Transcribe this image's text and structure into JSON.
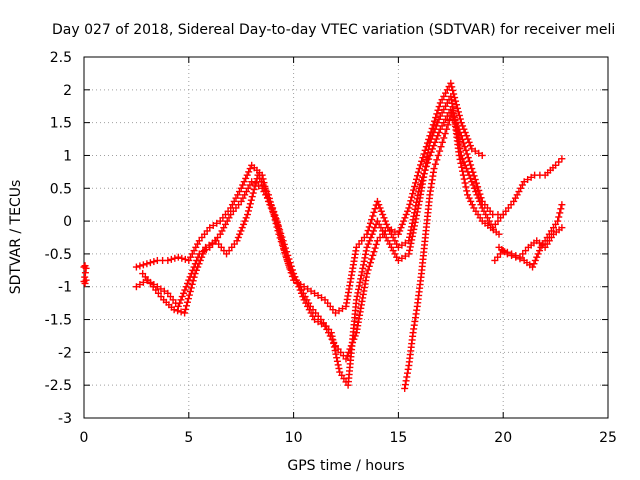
{
  "chart_data": {
    "type": "scatter",
    "title": "Day 027 of 2018, Sidereal Day-to-day VTEC variation (SDTVAR) for receiver meli",
    "xlabel": "GPS time / hours",
    "ylabel": "SDTVAR / TECUs",
    "xlim": [
      0,
      25
    ],
    "ylim": [
      -3,
      2.5
    ],
    "xticks": [
      "0",
      "5",
      "10",
      "15",
      "20",
      "25"
    ],
    "yticks": [
      "-3",
      "-2.5",
      "-2",
      "-1.5",
      "-1",
      "-0.5",
      "0",
      "0.5",
      "1",
      "1.5",
      "2",
      "2.5"
    ],
    "grid": true,
    "marker": "plus",
    "color": "#ff0000",
    "series": [
      {
        "x": [
          0.0,
          0.05,
          0.1,
          0.0,
          0.05,
          0.1
        ],
        "y": [
          -0.7,
          -0.68,
          -0.72,
          -0.92,
          -0.95,
          -0.9
        ]
      },
      {
        "x": [
          2.5,
          3.0,
          3.5,
          4.0,
          4.5,
          5.0,
          5.5,
          6.0,
          6.5,
          7.0,
          7.5,
          8.0,
          8.5,
          8.8,
          9.2,
          9.6,
          10.0,
          10.5,
          11.0,
          11.5,
          12.0,
          12.5,
          13.0,
          13.5,
          14.0,
          14.5,
          15.0,
          15.5,
          16.0,
          16.5,
          17.0,
          17.5,
          18.0,
          18.5,
          19.0
        ],
        "y": [
          -0.7,
          -0.65,
          -0.6,
          -0.6,
          -0.55,
          -0.6,
          -0.3,
          -0.1,
          0.0,
          0.2,
          0.5,
          0.85,
          0.7,
          0.3,
          0.0,
          -0.5,
          -0.9,
          -1.0,
          -1.1,
          -1.2,
          -1.4,
          -1.3,
          -0.4,
          -0.2,
          0.3,
          -0.1,
          -0.2,
          0.2,
          0.8,
          1.3,
          1.8,
          2.1,
          1.5,
          1.1,
          1.0
        ]
      },
      {
        "x": [
          2.5,
          3.0,
          3.5,
          4.0,
          4.5,
          5.0,
          5.5,
          6.0,
          6.5,
          7.0,
          7.5,
          8.0,
          8.5,
          9.0,
          9.5,
          10.0,
          10.5,
          11.0,
          11.5,
          12.0,
          12.5,
          13.0,
          13.5,
          14.0,
          14.5,
          15.0,
          15.5,
          16.0,
          16.5,
          17.0,
          17.5,
          18.0,
          18.5,
          19.0,
          19.5,
          20.0
        ],
        "y": [
          -1.0,
          -0.9,
          -1.0,
          -1.1,
          -1.3,
          -0.9,
          -0.5,
          -0.4,
          -0.2,
          0.1,
          0.3,
          0.6,
          0.5,
          0.2,
          -0.3,
          -0.8,
          -1.2,
          -1.5,
          -1.6,
          -1.9,
          -2.1,
          -1.7,
          -0.8,
          -0.3,
          -0.1,
          -0.4,
          -0.3,
          0.5,
          1.0,
          1.4,
          1.7,
          1.3,
          0.8,
          0.3,
          0.1,
          0.1
        ]
      },
      {
        "x": [
          2.8,
          3.3,
          3.8,
          4.3,
          4.8,
          5.3,
          5.8,
          6.3,
          6.8,
          7.3,
          7.8,
          8.3,
          8.8,
          9.3,
          9.8,
          10.3,
          10.8,
          11.3,
          11.8,
          12.2,
          12.6,
          13.0,
          13.5,
          14.0,
          14.5,
          15.0,
          15.5,
          16.0,
          16.5,
          17.0,
          17.5,
          18.0,
          18.5,
          19.0,
          19.5,
          20.0,
          20.5,
          21.0,
          21.5,
          22.0,
          22.5,
          22.8
        ],
        "y": [
          -0.8,
          -1.0,
          -1.2,
          -1.35,
          -1.4,
          -0.8,
          -0.4,
          -0.3,
          -0.5,
          -0.3,
          0.1,
          0.7,
          0.4,
          -0.2,
          -0.7,
          -1.0,
          -1.3,
          -1.5,
          -1.7,
          -2.3,
          -2.5,
          -1.2,
          -0.4,
          0.0,
          -0.3,
          -0.6,
          -0.5,
          0.3,
          1.2,
          1.6,
          1.9,
          1.0,
          0.6,
          0.2,
          -0.1,
          0.1,
          0.3,
          0.6,
          0.7,
          0.7,
          0.85,
          0.95
        ]
      },
      {
        "x": [
          15.3,
          15.5,
          15.7,
          15.9,
          16.1,
          16.3,
          16.5,
          16.7,
          16.9,
          17.1,
          17.3,
          17.5,
          17.7,
          17.9,
          18.1,
          18.3,
          18.6,
          19.0,
          19.4,
          19.8
        ],
        "y": [
          -2.55,
          -2.2,
          -1.7,
          -1.3,
          -0.8,
          -0.2,
          0.4,
          0.8,
          1.0,
          1.2,
          1.4,
          1.6,
          1.5,
          1.0,
          0.7,
          0.4,
          0.2,
          0.0,
          -0.1,
          -0.2
        ]
      },
      {
        "x": [
          19.8,
          20.2,
          20.6,
          21.0,
          21.4,
          21.8,
          22.2,
          22.6,
          22.8
        ],
        "y": [
          -0.4,
          -0.5,
          -0.55,
          -0.6,
          -0.7,
          -0.4,
          -0.2,
          0.0,
          0.25
        ]
      },
      {
        "x": [
          19.6,
          20.0,
          20.4,
          20.8,
          21.2,
          21.6,
          22.0,
          22.4,
          22.8
        ],
        "y": [
          -0.6,
          -0.45,
          -0.5,
          -0.55,
          -0.4,
          -0.3,
          -0.4,
          -0.2,
          -0.1
        ]
      }
    ]
  }
}
